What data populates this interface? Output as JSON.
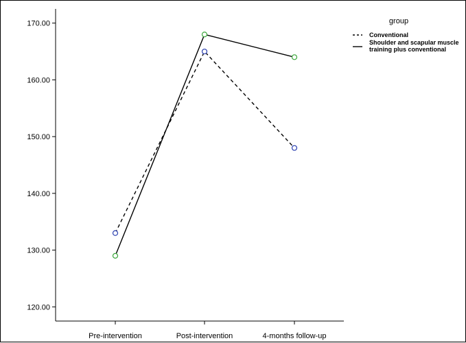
{
  "chart_data": {
    "type": "line",
    "categories": [
      "Pre-intervention",
      "Post-intervention",
      "4-months follow-up"
    ],
    "yticks": [
      "120.00",
      "130.00",
      "140.00",
      "150.00",
      "160.00",
      "170.00"
    ],
    "ylim": [
      117.5,
      172.5
    ],
    "grid": false,
    "legend": {
      "title": "group",
      "placement": "top-right"
    },
    "series": [
      {
        "name": "Conventional",
        "values": [
          133,
          165,
          148
        ],
        "line_style": "dashed",
        "marker_color": "#2a3fb0"
      },
      {
        "name": "Shoulder and scapular muscle training plus conventional",
        "name_lines": [
          "Shoulder and scapular muscle",
          "training plus conventional"
        ],
        "values": [
          129,
          168,
          164
        ],
        "line_style": "solid",
        "marker_color": "#3aa63a"
      }
    ]
  }
}
